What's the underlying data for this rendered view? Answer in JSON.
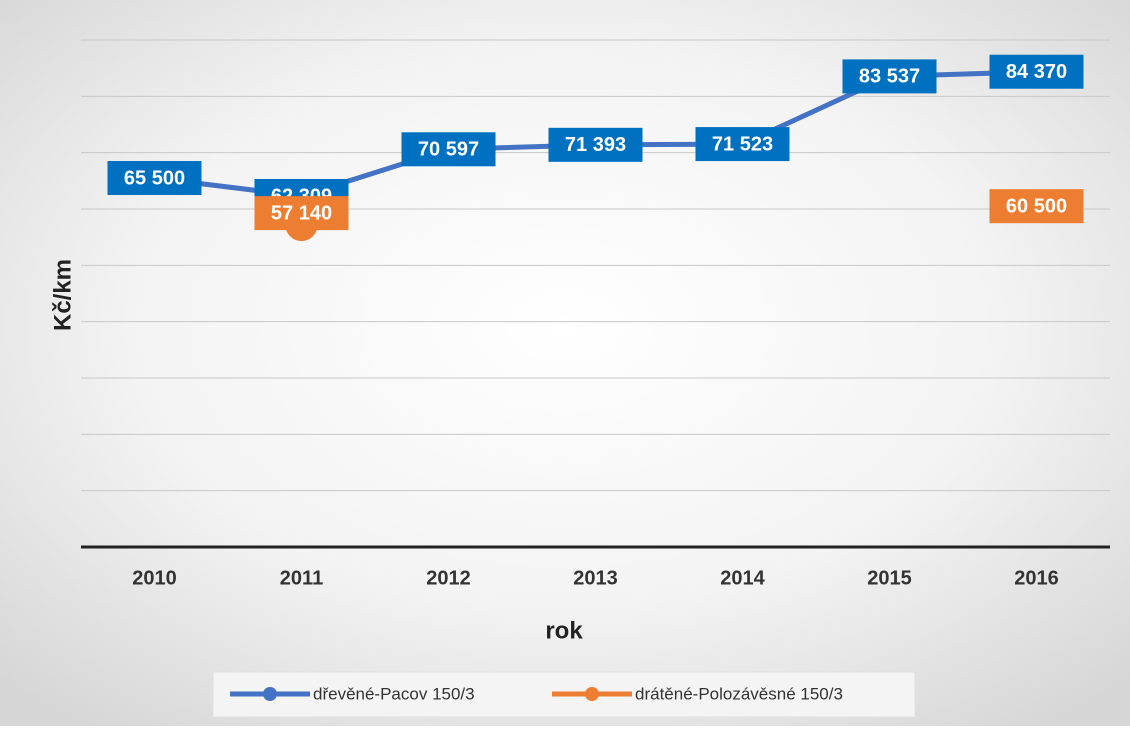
{
  "chart_data": {
    "type": "line",
    "x_label": "rok",
    "y_label": "Kč/km",
    "categories": [
      "2010",
      "2011",
      "2012",
      "2013",
      "2014",
      "2015",
      "2016"
    ],
    "series": [
      {
        "name": "dřevěné-Pacov 150/3",
        "color": "#4472c4",
        "label_color": "#0070c0",
        "values": [
          65500,
          62309,
          70597,
          71393,
          71523,
          83537,
          84370
        ],
        "value_labels": [
          "65 500",
          "62 309",
          "70 597",
          "71 393",
          "71 523",
          "83 537",
          "84 370"
        ]
      },
      {
        "name": "drátěné-Polozávěsné 150/3",
        "color": "#ed7d31",
        "label_color": "#ed7d31",
        "values": [
          null,
          57140,
          null,
          null,
          null,
          null,
          60500
        ],
        "value_labels": [
          null,
          "57 140",
          null,
          null,
          null,
          null,
          "60 500"
        ]
      }
    ],
    "ylim": [
      0,
      90000
    ],
    "yticks": [
      0,
      10000,
      20000,
      30000,
      40000,
      50000,
      60000,
      70000,
      80000,
      90000
    ],
    "grid": true,
    "legend": "bottom"
  }
}
